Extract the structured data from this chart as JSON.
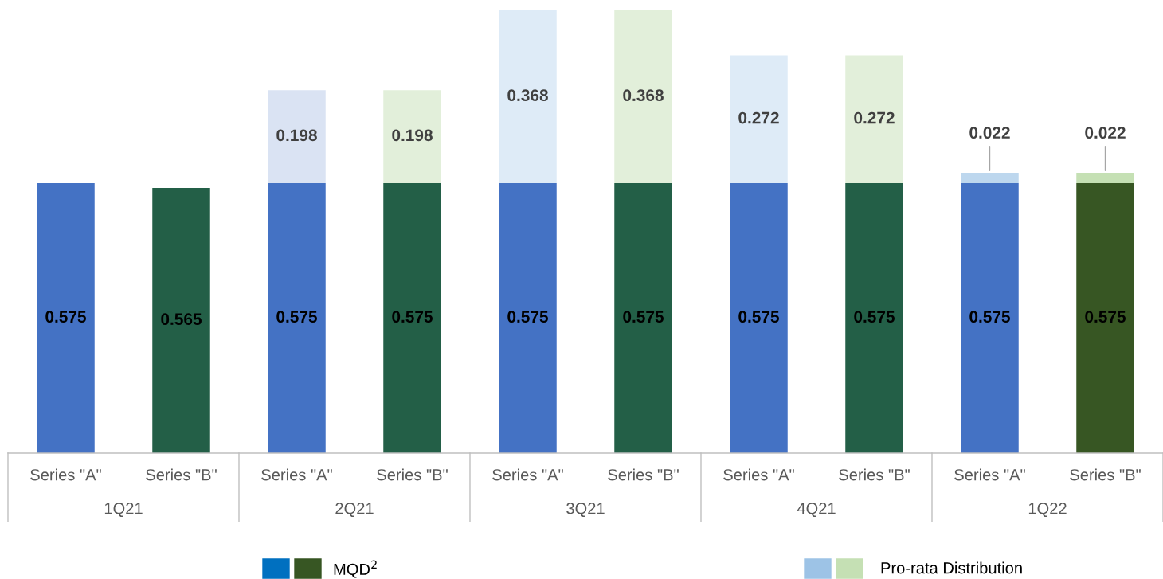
{
  "chart_data": {
    "type": "bar",
    "stacked": true,
    "data_labels": true,
    "categories": [
      "Series \"A\"",
      "Series \"B\"",
      "Series \"A\"",
      "Series \"B\"",
      "Series \"A\"",
      "Series \"B\"",
      "Series \"A\"",
      "Series \"B\"",
      "Series \"A\"",
      "Series \"B\""
    ],
    "annotations": [
      "1Q21",
      "2Q21",
      "3Q21",
      "4Q21",
      "1Q22"
    ],
    "series": [
      {
        "name": "MQD$^{2}$",
        "color": "#0070c0",
        "colors": [
          "#4472c4",
          "#235f47",
          "#4472c4",
          "#235f47",
          "#4472c4",
          "#235f47",
          "#4472c4",
          "#235f47",
          "#4472c4",
          "#375623"
        ],
        "values": [
          0.575,
          0.565,
          0.575,
          0.575,
          0.575,
          0.575,
          0.575,
          0.575,
          0.575,
          0.575
        ]
      },
      {
        "name": "Pro-rata Distribution",
        "color": "#9dc3e6",
        "colors": [
          "#dae3f3",
          "#e2efda",
          "#dae3f3",
          "#e2efda",
          "#deebf7",
          "#e2efda",
          "#deebf7",
          "#e2efda",
          "#bdd7ee",
          "#c5e0b4"
        ],
        "values": [
          null,
          null,
          0.198,
          0.198,
          0.368,
          0.368,
          0.272,
          0.272,
          0.022,
          0.022
        ]
      }
    ],
    "legend": "bottom"
  }
}
